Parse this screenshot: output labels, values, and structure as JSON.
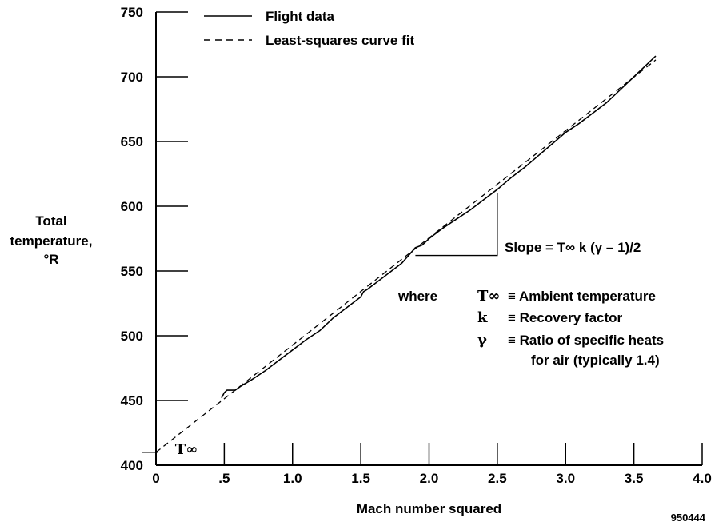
{
  "chart_data": {
    "type": "line",
    "xlabel": "Mach number squared",
    "ylabel_lines": [
      "Total",
      "temperature,",
      "°R"
    ],
    "xlim": [
      0,
      4.0
    ],
    "ylim": [
      400,
      750
    ],
    "xticks": [
      {
        "v": 0,
        "t": "0"
      },
      {
        "v": 0.5,
        "t": ".5"
      },
      {
        "v": 1.0,
        "t": "1.0"
      },
      {
        "v": 1.5,
        "t": "1.5"
      },
      {
        "v": 2.0,
        "t": "2.0"
      },
      {
        "v": 2.5,
        "t": "2.5"
      },
      {
        "v": 3.0,
        "t": "3.0"
      },
      {
        "v": 3.5,
        "t": "3.5"
      },
      {
        "v": 4.0,
        "t": "4.0"
      }
    ],
    "yticks": [
      {
        "v": 400,
        "t": "400"
      },
      {
        "v": 450,
        "t": "450"
      },
      {
        "v": 500,
        "t": "500"
      },
      {
        "v": 550,
        "t": "550"
      },
      {
        "v": 600,
        "t": "600"
      },
      {
        "v": 650,
        "t": "650"
      },
      {
        "v": 700,
        "t": "700"
      },
      {
        "v": 750,
        "t": "750"
      }
    ],
    "legend": [
      {
        "label": "Flight data",
        "style": "solid"
      },
      {
        "label": "Least-squares curve fit",
        "style": "dashed"
      }
    ],
    "legend_position": "top-left",
    "series": [
      {
        "name": "Flight data",
        "style": "solid",
        "x": [
          0.48,
          0.5,
          0.52,
          0.55,
          0.58,
          0.62,
          0.7,
          0.8,
          0.9,
          1.0,
          1.05,
          1.1,
          1.2,
          1.3,
          1.4,
          1.5,
          1.52,
          1.55,
          1.6,
          1.7,
          1.8,
          1.85,
          1.9,
          1.95,
          2.0,
          2.1,
          2.2,
          2.3,
          2.4,
          2.5,
          2.6,
          2.7,
          2.8,
          2.9,
          3.0,
          3.1,
          3.2,
          3.3,
          3.4,
          3.5,
          3.6,
          3.66
        ],
        "y": [
          452,
          456,
          458,
          458,
          458,
          461,
          466,
          473,
          481,
          489,
          493,
          497,
          504,
          514,
          522,
          530,
          534,
          536,
          540,
          548,
          556,
          562,
          568,
          570,
          575,
          583,
          590,
          597,
          605,
          613,
          622,
          630,
          639,
          648,
          657,
          664,
          672,
          680,
          690,
          700,
          710,
          716
        ]
      },
      {
        "name": "Least-squares curve fit",
        "style": "dashed",
        "x": [
          0,
          3.66
        ],
        "y": [
          410,
          713
        ]
      }
    ],
    "tinf_value": 410,
    "tinf_label": "T∞",
    "slope_triangle": {
      "x1": 1.9,
      "x2": 2.5,
      "y1": 562,
      "y2": 610
    },
    "annotations": {
      "slope": "Slope = T∞ k (γ – 1)/2",
      "where_word": "where",
      "defs": [
        {
          "sym": "T∞",
          "text": "≡ Ambient temperature"
        },
        {
          "sym": "k",
          "text": "≡ Recovery factor"
        },
        {
          "sym": "γ",
          "text": "≡ Ratio of specific heats"
        }
      ],
      "defs_continuation": "for air (typically 1.4)"
    },
    "figure_number": "950444"
  }
}
